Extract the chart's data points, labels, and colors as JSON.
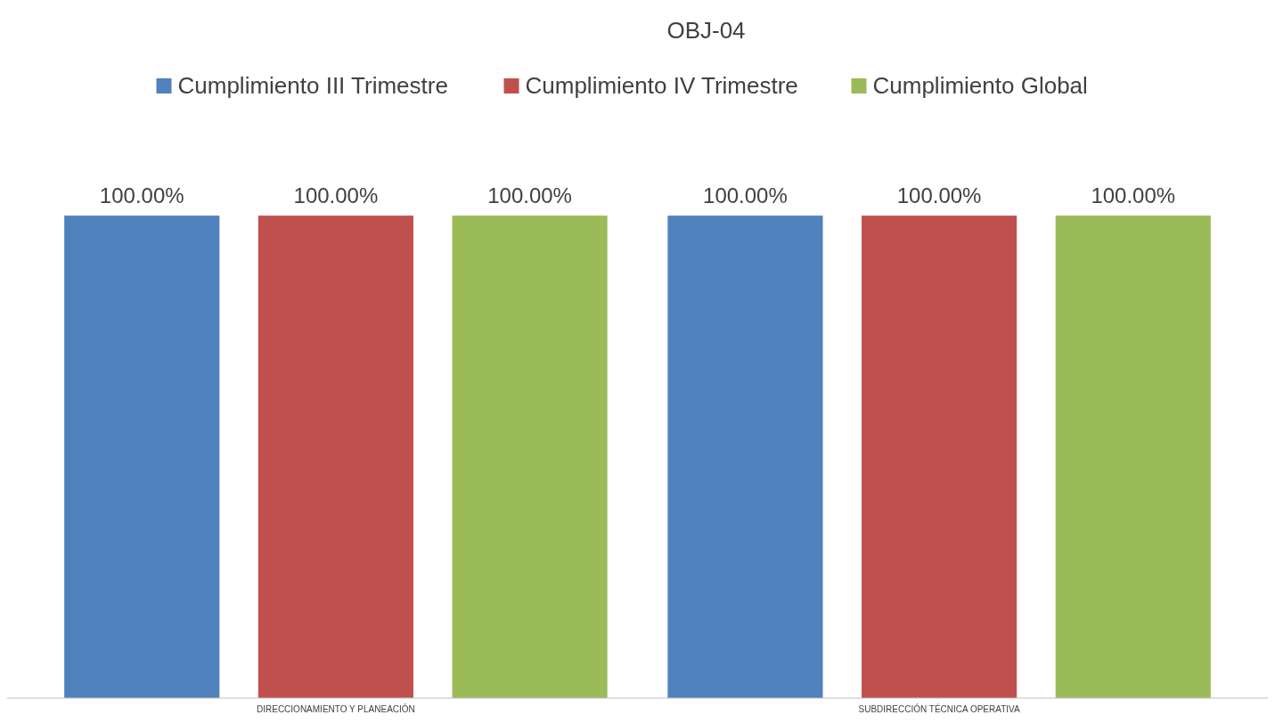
{
  "chart_data": {
    "type": "bar",
    "title": "OBJ-04",
    "categories": [
      "DIRECCIONAMIENTO Y PLANEACIÓN",
      "SUBDIRECCIÓN TÉCNICA OPERATIVA"
    ],
    "series": [
      {
        "name": "Cumplimiento III Trimestre",
        "color": "#4f81bd",
        "values": [
          100,
          100
        ],
        "value_labels": [
          "100.00%",
          "100.00%"
        ]
      },
      {
        "name": "Cumplimiento IV Trimestre",
        "color": "#c0504d",
        "values": [
          100,
          100
        ],
        "value_labels": [
          "100.00%",
          "100.00%"
        ]
      },
      {
        "name": "Cumplimiento Global",
        "color": "#9bbb59",
        "values": [
          100,
          100
        ],
        "value_labels": [
          "100.00%",
          "100.00%"
        ]
      }
    ],
    "legend": "top"
  }
}
